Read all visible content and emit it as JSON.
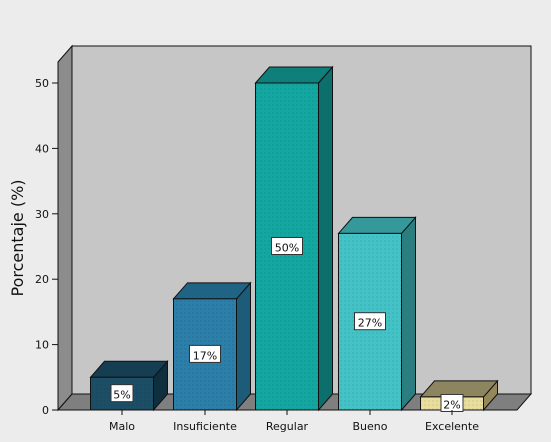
{
  "chart_data": {
    "type": "bar",
    "title": "",
    "xlabel": "",
    "ylabel": "Porcentaje (%)",
    "categories": [
      "Malo",
      "Insuficiente",
      "Regular",
      "Bueno",
      "Excelente"
    ],
    "values": [
      5,
      17,
      50,
      27,
      2
    ],
    "data_labels": [
      "5%",
      "17%",
      "50%",
      "27%",
      "2%"
    ],
    "ylim": [
      0,
      55
    ],
    "yticks": [
      0,
      10,
      20,
      30,
      40,
      50
    ],
    "style": "3d",
    "grid": false,
    "legend": "none",
    "colors": {
      "front": [
        "#1c4f66",
        "#2c7fa8",
        "#14a7a1",
        "#43c3c6",
        "#e8dd9c"
      ],
      "side": [
        "#0f2f3e",
        "#1d5c78",
        "#0c6f6b",
        "#2a7e80",
        "#94885a"
      ],
      "top": [
        "#163e52",
        "#1f6485",
        "#0f7f7b",
        "#35999b",
        "#8d8560"
      ],
      "wall": "#c6c6c6",
      "floor": "#7f7f7f",
      "background": "#ececec"
    }
  }
}
